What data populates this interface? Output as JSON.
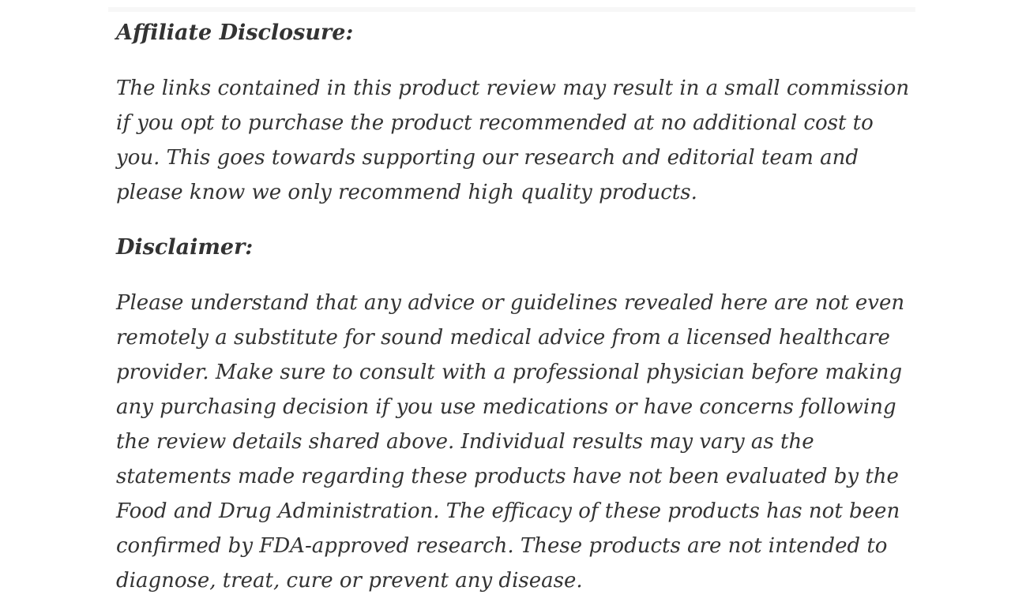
{
  "page": {
    "background_color": "#ffffff",
    "text_color": "#333333",
    "top_strip_color": "#f7f7f7"
  },
  "content": {
    "affiliate": {
      "heading": "Affiliate Disclosure:",
      "body": "The links contained in this product review may result in a small commission if you opt to purchase the product recommended at no additional cost to you. This goes towards supporting our research and editorial team and please know we only recommend high quality products."
    },
    "disclaimer": {
      "heading": "Disclaimer:",
      "body": "Please understand that any advice or guidelines revealed here are not even remotely a substitute for sound medical advice from a licensed healthcare provider. Make sure to consult with a professional physician before making any purchasing decision if you use medications or have concerns following the review details shared above. Individual results may vary as the statements made regarding these products have not been evaluated by the Food and Drug Administration. The efficacy of these products has not been confirmed by FDA-approved research. These products are not intended to diagnose, treat, cure or prevent any disease."
    }
  }
}
